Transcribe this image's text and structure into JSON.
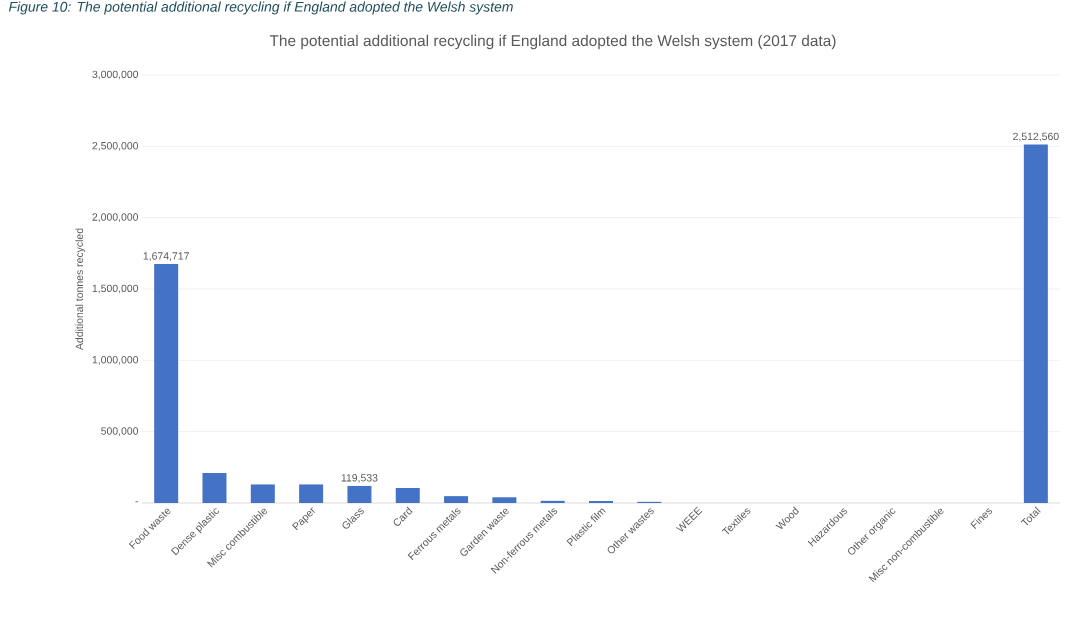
{
  "chart_data": {
    "type": "bar",
    "title": "The potential additional recycling if England adopted the Welsh system (2017 data)",
    "ylabel": "Additional tonnes recycled",
    "annotations": [
      "Figure 10: The potential additional recycling if England adopted the Welsh system"
    ],
    "categories": [
      "Food waste",
      "Dense plastic",
      "Misc combustible",
      "Paper",
      "Glass",
      "Card",
      "Ferrous metals",
      "Garden waste",
      "Non-ferrous metals",
      "Plastic film",
      "Other wastes",
      "WEEE",
      "Textiles",
      "Wood",
      "Hazardous",
      "Other organic",
      "Misc non-combustible",
      "Fines",
      "Total"
    ],
    "values": [
      1674717,
      210000,
      130000,
      130000,
      119533,
      105000,
      48000,
      40000,
      15000,
      14000,
      8000,
      0,
      0,
      0,
      0,
      0,
      0,
      0,
      2512560
    ],
    "value_labels": [
      "1,674,717",
      null,
      null,
      null,
      "119,533",
      null,
      null,
      null,
      null,
      null,
      null,
      null,
      null,
      null,
      null,
      null,
      null,
      null,
      "2,512,560"
    ],
    "color": "#4472c4",
    "ylim": [
      0,
      3000000
    ],
    "yticks": [
      {
        "value": 0,
        "label": "-"
      },
      {
        "value": 500000,
        "label": "500,000"
      },
      {
        "value": 1000000,
        "label": "1,000,000"
      },
      {
        "value": 1500000,
        "label": "1,500,000"
      },
      {
        "value": 2000000,
        "label": "2,000,000"
      },
      {
        "value": 2500000,
        "label": "2,500,000"
      },
      {
        "value": 3000000,
        "label": "3,000,000"
      }
    ],
    "grid": "y"
  }
}
